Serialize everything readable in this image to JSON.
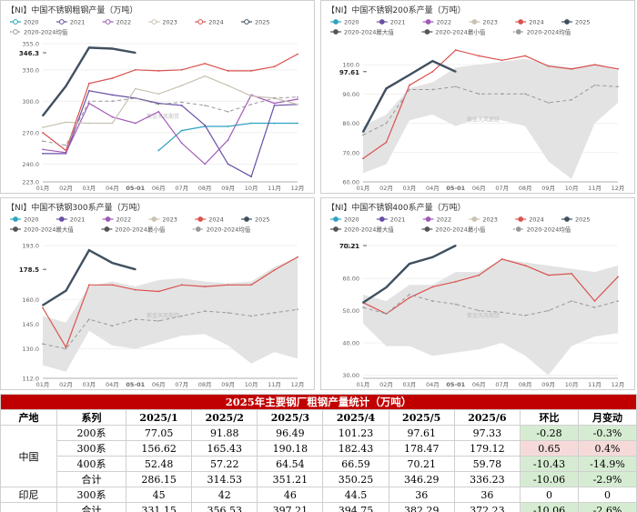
{
  "colors": {
    "y2020": "#2ea3c0",
    "y2021": "#6a4fa5",
    "y2022": "#a05bb8",
    "y2023": "#c9c2b2",
    "y2024": "#d9534f",
    "y2025": "#3f4f5f",
    "avg": "#999999",
    "range": "#e3e3e3",
    "header_bg": "#c00000"
  },
  "chart_data": [
    {
      "type": "line",
      "title": "【NI】中国不锈钢粗钢产量（万吨）",
      "categories": [
        "01月",
        "02月",
        "03月",
        "04月",
        "05-01",
        "06月",
        "07月",
        "08月",
        "09月",
        "10月",
        "11月",
        "12月"
      ],
      "ylim": [
        223,
        355
      ],
      "yticks": [
        "355.0",
        "330.0",
        "300.0",
        "270.0",
        "240.0",
        "223.0"
      ],
      "ytick_values": [
        355,
        330,
        300,
        270,
        240,
        223
      ],
      "legend": [
        "2020",
        "2021",
        "2022",
        "2023",
        "2024",
        "2025",
        "2020-2024均值"
      ],
      "annotation": "346.3",
      "annotation_value": 346.3,
      "watermark": "紫金天风期货",
      "series": [
        {
          "name": "2020",
          "values": [
            null,
            null,
            null,
            null,
            null,
            253,
            272,
            276,
            276,
            279,
            279,
            279
          ]
        },
        {
          "name": "2021",
          "values": [
            250,
            250,
            310,
            306,
            303,
            298,
            296,
            277,
            240,
            228,
            296,
            297
          ]
        },
        {
          "name": "2022",
          "values": [
            254,
            251,
            298,
            285,
            279,
            290,
            260,
            240,
            263,
            306,
            298,
            302
          ]
        },
        {
          "name": "2023",
          "values": [
            275,
            280,
            279,
            279,
            312,
            307,
            315,
            324,
            315,
            305,
            303,
            297
          ]
        },
        {
          "name": "2024",
          "values": [
            270,
            253,
            317,
            322,
            330,
            329,
            330,
            336,
            329,
            329,
            333,
            345
          ]
        },
        {
          "name": "2025",
          "values": [
            286.15,
            314.53,
            351.21,
            350.25,
            346.29,
            null,
            null,
            null,
            null,
            null,
            null,
            null
          ]
        },
        {
          "name": "2020-2024均值",
          "values": [
            262,
            258,
            300,
            300,
            303,
            297,
            299,
            296,
            290,
            297,
            303,
            304
          ]
        }
      ]
    },
    {
      "type": "area",
      "title": "【NI】中国不锈钢200系产量（万吨）",
      "categories": [
        "01月",
        "02月",
        "03月",
        "04月",
        "05-01",
        "06月",
        "07月",
        "08月",
        "09月",
        "10月",
        "11月",
        "12月"
      ],
      "ylim": [
        60,
        105
      ],
      "yticks": [
        "100.0",
        "90.00",
        "80.00",
        "70.00",
        "60.00"
      ],
      "ytick_values": [
        100,
        90,
        80,
        70,
        60
      ],
      "legend": [
        "2020",
        "2021",
        "2022",
        "2023",
        "2024",
        "2025",
        "2020-2024最大值",
        "2020-2024最小值",
        "2020-2024均值"
      ],
      "annotation": "97.61",
      "annotation_value": 97.61,
      "watermark": "紫金天风期货",
      "range_max": [
        79,
        83,
        92,
        94,
        99,
        100,
        101,
        102,
        100,
        99,
        100,
        98
      ],
      "range_min": [
        63,
        66,
        81,
        83,
        79,
        82,
        81,
        79,
        67,
        61,
        80,
        87
      ],
      "series": [
        {
          "name": "2024",
          "values": [
            68,
            73.5,
            93,
            97.6,
            105,
            103,
            101.5,
            103,
            99.5,
            98.5,
            100,
            98.5
          ]
        },
        {
          "name": "2025",
          "values": [
            77.05,
            91.88,
            96.49,
            101.23,
            97.61,
            null,
            null,
            null,
            null,
            null,
            null,
            null
          ]
        },
        {
          "name": "2020-2024均值",
          "values": [
            76,
            80,
            91.5,
            91.5,
            92.5,
            90,
            90,
            90,
            87,
            88,
            93,
            92.5
          ]
        }
      ]
    },
    {
      "type": "area",
      "title": "【NI】中国不锈钢300系产量（万吨）",
      "categories": [
        "01月",
        "02月",
        "03月",
        "04月",
        "05-01",
        "06月",
        "07月",
        "08月",
        "09月",
        "10月",
        "11月",
        "12月"
      ],
      "ylim": [
        112,
        193
      ],
      "yticks": [
        "193.0",
        "160.0",
        "145.0",
        "130.0",
        "112.0"
      ],
      "ytick_values": [
        193,
        160,
        145,
        130,
        112
      ],
      "legend": [
        "2020",
        "2021",
        "2022",
        "2023",
        "2024",
        "2025",
        "2020-2024最大值",
        "2020-2024最小值",
        "2020-2024均值"
      ],
      "annotation": "178.5",
      "annotation_value": 178.5,
      "watermark": "紫金天风期货",
      "range_max": [
        150,
        146,
        168,
        171,
        168,
        172,
        173,
        171,
        170,
        171,
        180,
        186
      ],
      "range_min": [
        120,
        116,
        141,
        132,
        130,
        134,
        138,
        139,
        132,
        121,
        128,
        124
      ],
      "series": [
        {
          "name": "2024",
          "values": [
            155,
            131,
            169,
            169,
            166,
            165,
            169,
            168,
            169,
            169,
            178,
            186
          ]
        },
        {
          "name": "2025",
          "values": [
            156.62,
            165.43,
            190.18,
            182.43,
            178.47,
            null,
            null,
            null,
            null,
            null,
            null,
            null
          ]
        },
        {
          "name": "2020-2024均值",
          "values": [
            133,
            130,
            148,
            144,
            148,
            147,
            150,
            153,
            152,
            150,
            152,
            154
          ]
        }
      ]
    },
    {
      "type": "area",
      "title": "【NI】中国不锈钢400系产量（万吨）",
      "categories": [
        "01月",
        "02月",
        "03月",
        "04月",
        "05-01",
        "06月",
        "07月",
        "08月",
        "09月",
        "10月",
        "11月",
        "12月"
      ],
      "ylim": [
        29,
        70.21
      ],
      "yticks": [
        "70.21",
        "60.00",
        "50.00",
        "40.00",
        "30.00"
      ],
      "ytick_values": [
        70.21,
        60,
        50,
        40,
        30
      ],
      "legend": [
        "2020",
        "2021",
        "2022",
        "2023",
        "2024",
        "2025",
        "2020-2024最大值",
        "2020-2024最小值",
        "2020-2024均值"
      ],
      "annotation": "70.21",
      "annotation_value": 70.21,
      "watermark": "紫金天风期货",
      "range_max": [
        55,
        53,
        58,
        58,
        62,
        62,
        66,
        65,
        64,
        63,
        62,
        64
      ],
      "range_min": [
        46,
        39,
        39,
        36,
        37,
        38,
        40,
        36,
        30,
        39,
        42,
        43
      ],
      "series": [
        {
          "name": "2024",
          "values": [
            52.5,
            49,
            54,
            57.4,
            59,
            61,
            66,
            64,
            61,
            61.5,
            53,
            60.5
          ]
        },
        {
          "name": "2025",
          "values": [
            52.48,
            57.22,
            64.54,
            66.59,
            70.21,
            null,
            null,
            null,
            null,
            null,
            null,
            null
          ]
        },
        {
          "name": "2020-2024均值",
          "values": [
            51,
            49,
            55,
            53,
            52,
            50,
            49.5,
            48.5,
            50,
            53,
            51,
            53
          ]
        }
      ]
    }
  ],
  "table": {
    "title": "2025年主要钢厂粗钢产量统计（万吨）",
    "headers": [
      "产地",
      "系列",
      "2025/1",
      "2025/2",
      "2025/3",
      "2025/4",
      "2025/5",
      "2025/6",
      "环比",
      "月变动"
    ],
    "regions": [
      "中国",
      "印尼"
    ],
    "rows": [
      {
        "series": "200系",
        "values": [
          "77.05",
          "91.88",
          "96.49",
          "101.23",
          "97.61",
          "97.33"
        ],
        "mom": "-0.28",
        "pct": "-0.3%"
      },
      {
        "series": "300系",
        "values": [
          "156.62",
          "165.43",
          "190.18",
          "182.43",
          "178.47",
          "179.12"
        ],
        "mom": "0.65",
        "pct": "0.4%"
      },
      {
        "series": "400系",
        "values": [
          "52.48",
          "57.22",
          "64.54",
          "66.59",
          "70.21",
          "59.78"
        ],
        "mom": "-10.43",
        "pct": "-14.9%"
      },
      {
        "series": "合计",
        "values": [
          "286.15",
          "314.53",
          "351.21",
          "350.25",
          "346.29",
          "336.23"
        ],
        "mom": "-10.06",
        "pct": "-2.9%"
      },
      {
        "series": "300系",
        "values": [
          "45",
          "42",
          "46",
          "44.5",
          "36",
          "36"
        ],
        "mom": "0",
        "pct": "0"
      },
      {
        "series": "合计",
        "values": [
          "331.15",
          "356.53",
          "397.21",
          "394.75",
          "382.29",
          "372.23"
        ],
        "mom": "-10.06",
        "pct": "-2.6%"
      }
    ]
  }
}
